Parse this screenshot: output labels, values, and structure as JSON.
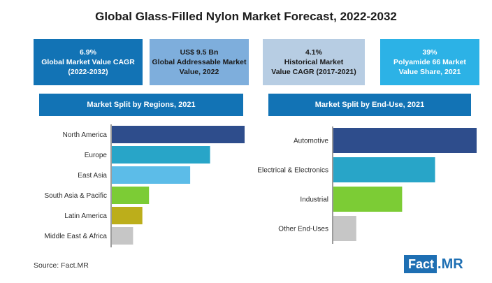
{
  "title": "Global Glass-Filled Nylon Market Forecast, 2022-2032",
  "stats": [
    {
      "line1": "6.9%",
      "line2": "Global Market Value CAGR",
      "line3": "(2022-2032)",
      "bg": "#1273b5",
      "fg": "#ffffff"
    },
    {
      "line1": "US$ 9.5 Bn",
      "line2": "Global Addressable Market",
      "line3": "Value, 2022",
      "bg": "#7eaedc",
      "fg": "#1a1a1a"
    },
    {
      "line1": "4.1%",
      "line2": "Historical Market",
      "line3": "Value CAGR (2017-2021)",
      "bg": "#b7cde3",
      "fg": "#1a1a1a"
    },
    {
      "line1": "39%",
      "line2": "Polyamide 66 Market",
      "line3": "Value Share, 2021",
      "bg": "#2cb2e6",
      "fg": "#ffffff"
    }
  ],
  "chart_data": [
    {
      "type": "bar",
      "orientation": "horizontal",
      "title": "Market Split by Regions, 2021",
      "categories": [
        "North America",
        "Europe",
        "East Asia",
        "South Asia & Pacific",
        "Latin America",
        "Middle East & Africa"
      ],
      "values": [
        100,
        74,
        59,
        28,
        23,
        16
      ],
      "colors": [
        "#2e4d8c",
        "#28a5c8",
        "#5cbce8",
        "#7ccc35",
        "#bcae1b",
        "#c6c6c6"
      ],
      "xlim": [
        0,
        100
      ]
    },
    {
      "type": "bar",
      "orientation": "horizontal",
      "title": "Market Split by End-Use, 2021",
      "categories": [
        "Automotive",
        "Electrical & Electronics",
        "Industrial",
        "Other End-Uses"
      ],
      "values": [
        100,
        71,
        48,
        16
      ],
      "colors": [
        "#2e4d8c",
        "#28a5c8",
        "#7ccc35",
        "#c6c6c6"
      ],
      "xlim": [
        0,
        100
      ]
    }
  ],
  "source": "Source: Fact.MR",
  "logo": {
    "part1": "Fact",
    "part2": ".MR"
  }
}
